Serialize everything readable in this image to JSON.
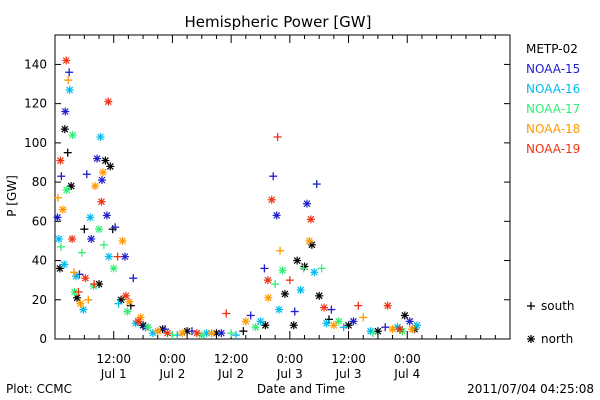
{
  "chart_data": {
    "type": "scatter",
    "title": "Hemispheric Power [GW]",
    "ylabel": "P [GW]",
    "xlabel": "Date and Time",
    "ylim": [
      0,
      155
    ],
    "xlim_hours": [
      0,
      93
    ],
    "y_ticks": [
      0,
      20,
      40,
      60,
      80,
      100,
      120,
      140
    ],
    "x_ticks": [
      {
        "hour": 12,
        "line1": "12:00",
        "line2": "Jul 1"
      },
      {
        "hour": 24,
        "line1": "0:00",
        "line2": "Jul 2"
      },
      {
        "hour": 36,
        "line1": "12:00",
        "line2": "Jul 2"
      },
      {
        "hour": 48,
        "line1": "0:00",
        "line2": "Jul 3"
      },
      {
        "hour": 60,
        "line1": "12:00",
        "line2": "Jul 3"
      },
      {
        "hour": 72,
        "line1": "0:00",
        "line2": "Jul 4"
      }
    ],
    "symbols": {
      "south": "+",
      "north": "*"
    },
    "symbol_legend": [
      {
        "symbol": "+",
        "label": "south"
      },
      {
        "symbol": "*",
        "label": "north"
      }
    ],
    "series": [
      {
        "name": "METP-02",
        "color": "#000000",
        "points": [
          {
            "x": 1.0,
            "y": 36,
            "h": "north"
          },
          {
            "x": 2.0,
            "y": 107,
            "h": "north"
          },
          {
            "x": 2.6,
            "y": 95,
            "h": "south"
          },
          {
            "x": 3.3,
            "y": 78,
            "h": "north"
          },
          {
            "x": 4.5,
            "y": 21,
            "h": "north"
          },
          {
            "x": 6.0,
            "y": 56,
            "h": "south"
          },
          {
            "x": 9.0,
            "y": 28,
            "h": "north"
          },
          {
            "x": 10.3,
            "y": 91,
            "h": "north"
          },
          {
            "x": 11.3,
            "y": 88,
            "h": "north"
          },
          {
            "x": 11.8,
            "y": 56,
            "h": "south"
          },
          {
            "x": 13.5,
            "y": 20,
            "h": "north"
          },
          {
            "x": 15.5,
            "y": 17,
            "h": "south"
          },
          {
            "x": 18.0,
            "y": 7,
            "h": "north"
          },
          {
            "x": 22.0,
            "y": 5,
            "h": "north"
          },
          {
            "x": 27.0,
            "y": 4,
            "h": "north"
          },
          {
            "x": 33.0,
            "y": 3,
            "h": "north"
          },
          {
            "x": 38.5,
            "y": 4,
            "h": "south"
          },
          {
            "x": 43.0,
            "y": 7,
            "h": "north"
          },
          {
            "x": 47.0,
            "y": 23,
            "h": "north"
          },
          {
            "x": 48.8,
            "y": 7,
            "h": "north"
          },
          {
            "x": 49.5,
            "y": 40,
            "h": "north"
          },
          {
            "x": 51.0,
            "y": 37,
            "h": "north"
          },
          {
            "x": 52.5,
            "y": 48,
            "h": "north"
          },
          {
            "x": 54.0,
            "y": 22,
            "h": "north"
          },
          {
            "x": 56.0,
            "y": 10,
            "h": "south"
          },
          {
            "x": 60.0,
            "y": 7,
            "h": "north"
          },
          {
            "x": 66.0,
            "y": 4,
            "h": "north"
          },
          {
            "x": 71.5,
            "y": 12,
            "h": "north"
          },
          {
            "x": 73.5,
            "y": 5,
            "h": "north"
          }
        ]
      },
      {
        "name": "NOAA-15",
        "color": "#1f1fcc",
        "points": [
          {
            "x": 0.5,
            "y": 62,
            "h": "north"
          },
          {
            "x": 1.3,
            "y": 83,
            "h": "south"
          },
          {
            "x": 2.1,
            "y": 116,
            "h": "north"
          },
          {
            "x": 2.9,
            "y": 136,
            "h": "south"
          },
          {
            "x": 5.0,
            "y": 33,
            "h": "south"
          },
          {
            "x": 6.5,
            "y": 84,
            "h": "south"
          },
          {
            "x": 7.4,
            "y": 51,
            "h": "north"
          },
          {
            "x": 8.6,
            "y": 92,
            "h": "north"
          },
          {
            "x": 9.6,
            "y": 81,
            "h": "north"
          },
          {
            "x": 10.6,
            "y": 63,
            "h": "north"
          },
          {
            "x": 12.3,
            "y": 57,
            "h": "south"
          },
          {
            "x": 14.3,
            "y": 42,
            "h": "north"
          },
          {
            "x": 16.0,
            "y": 31,
            "h": "south"
          },
          {
            "x": 18.5,
            "y": 6,
            "h": "north"
          },
          {
            "x": 22.5,
            "y": 5,
            "h": "south"
          },
          {
            "x": 28.0,
            "y": 4,
            "h": "south"
          },
          {
            "x": 34.0,
            "y": 3,
            "h": "north"
          },
          {
            "x": 40.0,
            "y": 12,
            "h": "south"
          },
          {
            "x": 42.8,
            "y": 36,
            "h": "south"
          },
          {
            "x": 44.6,
            "y": 83,
            "h": "south"
          },
          {
            "x": 45.3,
            "y": 63,
            "h": "north"
          },
          {
            "x": 49.0,
            "y": 14,
            "h": "south"
          },
          {
            "x": 51.5,
            "y": 69,
            "h": "north"
          },
          {
            "x": 53.5,
            "y": 79,
            "h": "south"
          },
          {
            "x": 56.5,
            "y": 15,
            "h": "south"
          },
          {
            "x": 61.0,
            "y": 9,
            "h": "north"
          },
          {
            "x": 67.5,
            "y": 6,
            "h": "south"
          },
          {
            "x": 72.5,
            "y": 9,
            "h": "north"
          }
        ]
      },
      {
        "name": "NOAA-16",
        "color": "#00bbee",
        "points": [
          {
            "x": 0.8,
            "y": 51,
            "h": "north"
          },
          {
            "x": 1.9,
            "y": 38,
            "h": "north"
          },
          {
            "x": 3.0,
            "y": 127,
            "h": "north"
          },
          {
            "x": 4.3,
            "y": 32,
            "h": "north"
          },
          {
            "x": 5.8,
            "y": 15,
            "h": "north"
          },
          {
            "x": 7.2,
            "y": 62,
            "h": "north"
          },
          {
            "x": 9.3,
            "y": 103,
            "h": "north"
          },
          {
            "x": 11.0,
            "y": 42,
            "h": "north"
          },
          {
            "x": 13.0,
            "y": 18,
            "h": "south"
          },
          {
            "x": 16.5,
            "y": 8,
            "h": "north"
          },
          {
            "x": 20.0,
            "y": 3,
            "h": "north"
          },
          {
            "x": 25.0,
            "y": 2,
            "h": "south"
          },
          {
            "x": 31.0,
            "y": 3,
            "h": "north"
          },
          {
            "x": 37.0,
            "y": 2,
            "h": "south"
          },
          {
            "x": 42.0,
            "y": 9,
            "h": "north"
          },
          {
            "x": 45.8,
            "y": 15,
            "h": "north"
          },
          {
            "x": 50.2,
            "y": 25,
            "h": "north"
          },
          {
            "x": 53.0,
            "y": 34,
            "h": "north"
          },
          {
            "x": 55.5,
            "y": 8,
            "h": "north"
          },
          {
            "x": 59.0,
            "y": 6,
            "h": "south"
          },
          {
            "x": 64.5,
            "y": 4,
            "h": "north"
          },
          {
            "x": 70.0,
            "y": 6,
            "h": "north"
          },
          {
            "x": 74.0,
            "y": 7,
            "h": "north"
          }
        ]
      },
      {
        "name": "NOAA-17",
        "color": "#33ee77",
        "points": [
          {
            "x": 1.2,
            "y": 47,
            "h": "south"
          },
          {
            "x": 2.4,
            "y": 76,
            "h": "north"
          },
          {
            "x": 3.6,
            "y": 104,
            "h": "north"
          },
          {
            "x": 4.0,
            "y": 24,
            "h": "north"
          },
          {
            "x": 5.5,
            "y": 44,
            "h": "south"
          },
          {
            "x": 7.9,
            "y": 27,
            "h": "north"
          },
          {
            "x": 9.0,
            "y": 56,
            "h": "north"
          },
          {
            "x": 10.0,
            "y": 48,
            "h": "south"
          },
          {
            "x": 12.0,
            "y": 36,
            "h": "north"
          },
          {
            "x": 14.8,
            "y": 14,
            "h": "north"
          },
          {
            "x": 19.0,
            "y": 6,
            "h": "north"
          },
          {
            "x": 24.0,
            "y": 2,
            "h": "south"
          },
          {
            "x": 30.0,
            "y": 2,
            "h": "north"
          },
          {
            "x": 36.0,
            "y": 3,
            "h": "south"
          },
          {
            "x": 41.0,
            "y": 6,
            "h": "north"
          },
          {
            "x": 45.0,
            "y": 28,
            "h": "south"
          },
          {
            "x": 46.5,
            "y": 35,
            "h": "north"
          },
          {
            "x": 50.8,
            "y": 36,
            "h": "south"
          },
          {
            "x": 54.5,
            "y": 36,
            "h": "south"
          },
          {
            "x": 58.0,
            "y": 9,
            "h": "north"
          },
          {
            "x": 65.0,
            "y": 3,
            "h": "south"
          },
          {
            "x": 71.0,
            "y": 4,
            "h": "north"
          }
        ]
      },
      {
        "name": "NOAA-18",
        "color": "#ff9900",
        "points": [
          {
            "x": 0.6,
            "y": 72,
            "h": "south"
          },
          {
            "x": 1.6,
            "y": 66,
            "h": "north"
          },
          {
            "x": 2.7,
            "y": 132,
            "h": "south"
          },
          {
            "x": 3.9,
            "y": 34,
            "h": "south"
          },
          {
            "x": 5.2,
            "y": 18,
            "h": "north"
          },
          {
            "x": 6.8,
            "y": 20,
            "h": "south"
          },
          {
            "x": 8.2,
            "y": 78,
            "h": "north"
          },
          {
            "x": 9.8,
            "y": 85,
            "h": "north"
          },
          {
            "x": 13.8,
            "y": 50,
            "h": "north"
          },
          {
            "x": 15.2,
            "y": 19,
            "h": "north"
          },
          {
            "x": 17.5,
            "y": 11,
            "h": "north"
          },
          {
            "x": 21.0,
            "y": 4,
            "h": "north"
          },
          {
            "x": 26.0,
            "y": 3,
            "h": "north"
          },
          {
            "x": 32.0,
            "y": 3,
            "h": "north"
          },
          {
            "x": 39.0,
            "y": 9,
            "h": "north"
          },
          {
            "x": 43.6,
            "y": 21,
            "h": "north"
          },
          {
            "x": 46.0,
            "y": 45,
            "h": "south"
          },
          {
            "x": 52.0,
            "y": 50,
            "h": "north"
          },
          {
            "x": 57.0,
            "y": 7,
            "h": "north"
          },
          {
            "x": 63.0,
            "y": 11,
            "h": "south"
          },
          {
            "x": 69.0,
            "y": 5,
            "h": "north"
          },
          {
            "x": 73.0,
            "y": 5,
            "h": "north"
          }
        ]
      },
      {
        "name": "NOAA-19",
        "color": "#ee3311",
        "points": [
          {
            "x": 1.1,
            "y": 91,
            "h": "north"
          },
          {
            "x": 2.3,
            "y": 142,
            "h": "north"
          },
          {
            "x": 3.5,
            "y": 51,
            "h": "north"
          },
          {
            "x": 4.8,
            "y": 24,
            "h": "south"
          },
          {
            "x": 6.2,
            "y": 31,
            "h": "north"
          },
          {
            "x": 8.0,
            "y": 28,
            "h": "south"
          },
          {
            "x": 9.5,
            "y": 70,
            "h": "north"
          },
          {
            "x": 10.9,
            "y": 121,
            "h": "north"
          },
          {
            "x": 12.8,
            "y": 42,
            "h": "south"
          },
          {
            "x": 14.5,
            "y": 22,
            "h": "north"
          },
          {
            "x": 17.0,
            "y": 9,
            "h": "north"
          },
          {
            "x": 23.0,
            "y": 3,
            "h": "north"
          },
          {
            "x": 29.0,
            "y": 3,
            "h": "north"
          },
          {
            "x": 35.0,
            "y": 13,
            "h": "south"
          },
          {
            "x": 43.5,
            "y": 30,
            "h": "north"
          },
          {
            "x": 44.3,
            "y": 71,
            "h": "north"
          },
          {
            "x": 45.5,
            "y": 103,
            "h": "south"
          },
          {
            "x": 48.0,
            "y": 30,
            "h": "south"
          },
          {
            "x": 52.3,
            "y": 61,
            "h": "north"
          },
          {
            "x": 55.0,
            "y": 16,
            "h": "north"
          },
          {
            "x": 62.0,
            "y": 17,
            "h": "south"
          },
          {
            "x": 68.0,
            "y": 17,
            "h": "north"
          },
          {
            "x": 70.5,
            "y": 5,
            "h": "north"
          }
        ]
      }
    ]
  },
  "footer": {
    "left": "Plot: CCMC",
    "right": "2011/07/04 04:25:08"
  }
}
